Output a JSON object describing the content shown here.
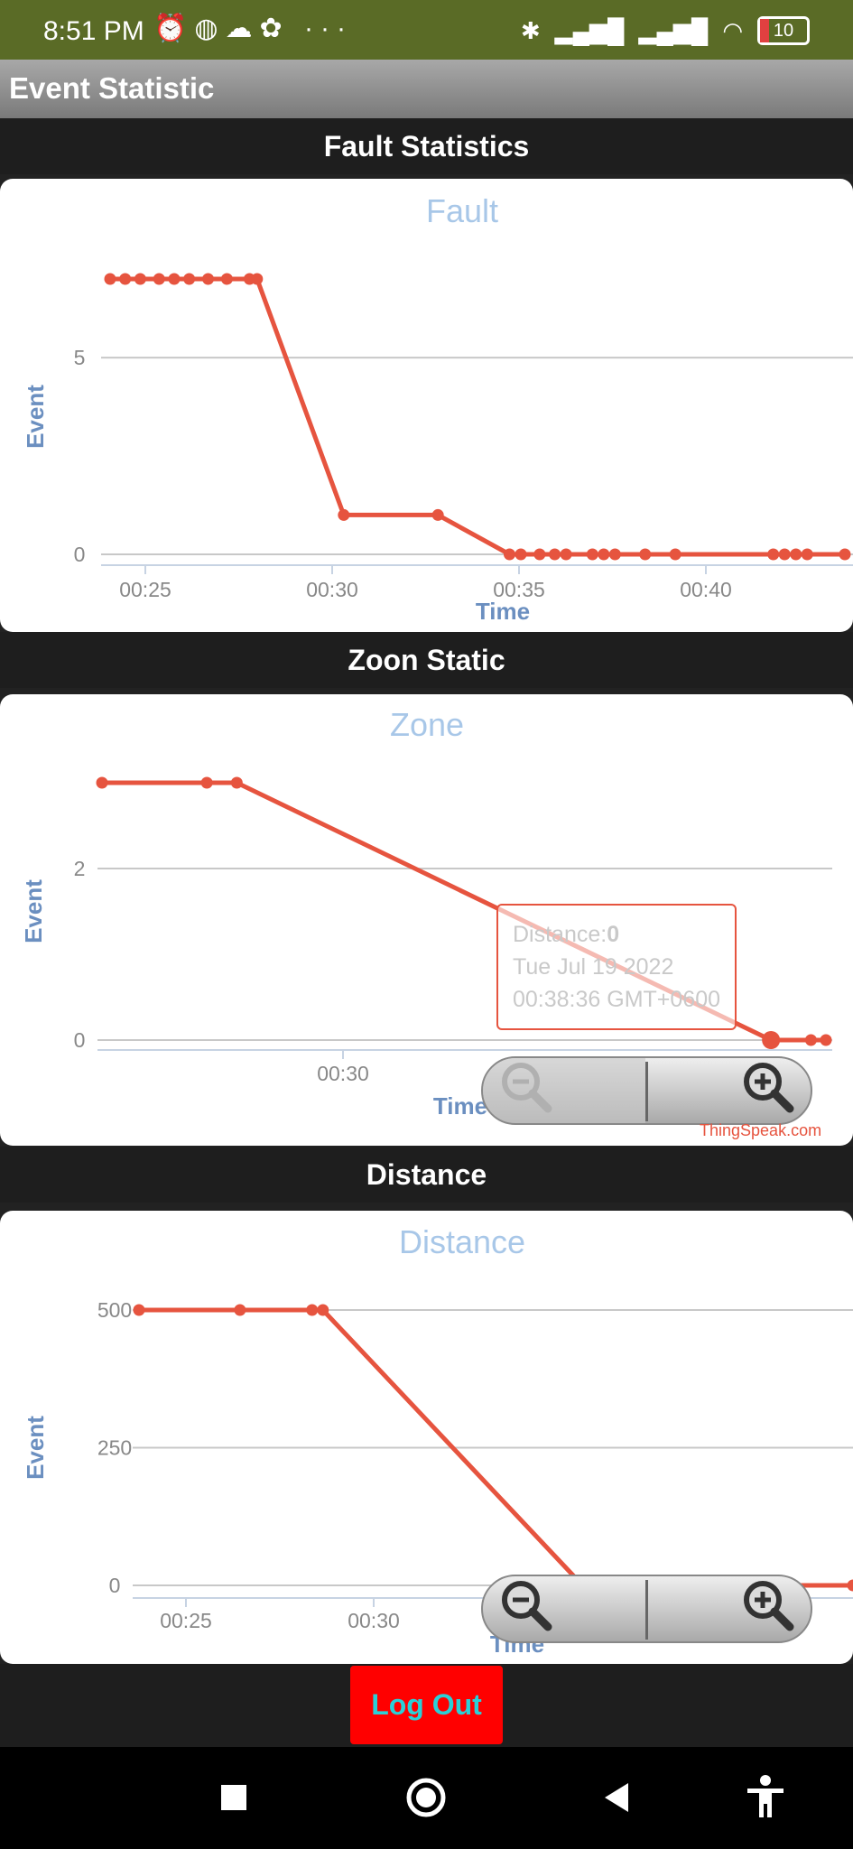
{
  "status_bar": {
    "time": "8:51 PM",
    "more": "···",
    "battery": "10"
  },
  "app_bar": {
    "title": "Event Statistic"
  },
  "sections": {
    "fault": "Fault Statistics",
    "zone": "Zoon Static",
    "distance": "Distance"
  },
  "colors": {
    "line": "#e6543f",
    "title": "#a8c7e8",
    "axis_label": "#6b8fc0",
    "logout_bg": "#ff0000",
    "logout_text": "#2ad0d8"
  },
  "chart_data": [
    {
      "type": "line",
      "title": "Fault",
      "xlabel": "Time",
      "ylabel": "Event",
      "x_ticks": [
        "00:25",
        "00:30",
        "00:35",
        "00:40"
      ],
      "y_ticks": [
        "5",
        "0"
      ],
      "ylim": [
        0,
        7
      ],
      "x": [
        "00:24.1",
        "00:24.5",
        "00:24.9",
        "00:25.4",
        "00:25.8",
        "00:26.2",
        "00:26.7",
        "00:27.2",
        "00:27.8",
        "00:28.0",
        "00:30.3",
        "00:32.8",
        "00:34.7",
        "00:35.0",
        "00:35.5",
        "00:35.9",
        "00:36.2",
        "00:36.9",
        "00:37.2",
        "00:37.5",
        "00:38.3",
        "00:39.1",
        "00:41.7",
        "00:42.0",
        "00:42.3",
        "00:42.6",
        "00:43.6"
      ],
      "values": [
        7,
        7,
        7,
        7,
        7,
        7,
        7,
        7,
        7,
        7,
        1,
        1,
        0,
        0,
        0,
        0,
        0,
        0,
        0,
        0,
        0,
        0,
        0,
        0,
        0,
        0,
        0
      ]
    },
    {
      "type": "line",
      "title": "Zone",
      "xlabel": "Time",
      "ylabel": "Event",
      "x_ticks": [
        "00:30"
      ],
      "y_ticks": [
        "2",
        "0"
      ],
      "ylim": [
        0,
        3
      ],
      "x": [
        "00:25.2",
        "00:27.3",
        "00:27.9",
        "00:38.6",
        "00:39.4",
        "00:39.7"
      ],
      "values": [
        3,
        3,
        3,
        0,
        0,
        0
      ],
      "tooltip": {
        "label": "Distance:",
        "value": "0",
        "date": "Tue Jul 19 2022",
        "time": "00:38:36 GMT+0600"
      },
      "attribution": "ThingSpeak.com"
    },
    {
      "type": "line",
      "title": "Distance",
      "xlabel": "Time",
      "ylabel": "Event",
      "x_ticks": [
        "00:25",
        "00:30"
      ],
      "y_ticks": [
        "500",
        "250",
        "0"
      ],
      "ylim": [
        0,
        500
      ],
      "x": [
        "00:24.2",
        "00:27.0",
        "00:29.0",
        "00:29.3",
        "00:36.5",
        "00:44.0"
      ],
      "values": [
        500,
        500,
        500,
        500,
        0,
        0
      ]
    }
  ],
  "footer": {
    "logout": "Log Out"
  }
}
